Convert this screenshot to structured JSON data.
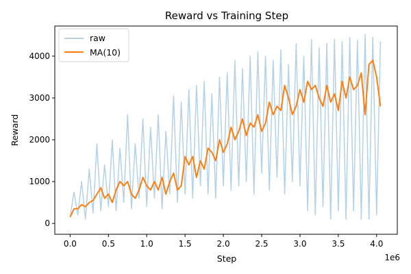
{
  "chart_data": {
    "type": "line",
    "title": "Reward vs Training Step",
    "xlabel": "Step",
    "ylabel": "Reward",
    "x_multiplier_label": "1e6",
    "xlim": [
      -0.2,
      4.27
    ],
    "ylim": [
      -260,
      4720
    ],
    "x_ticks": [
      0.0,
      0.5,
      1.0,
      1.5,
      2.0,
      2.5,
      3.0,
      3.5,
      4.0
    ],
    "x_tick_labels": [
      "0.0",
      "0.5",
      "1.0",
      "1.5",
      "2.0",
      "2.5",
      "3.0",
      "3.5",
      "4.0"
    ],
    "y_ticks": [
      0,
      1000,
      2000,
      3000,
      4000
    ],
    "y_tick_labels": [
      "0",
      "1000",
      "2000",
      "3000",
      "4000"
    ],
    "grid": false,
    "legend_position": "top-left",
    "series": [
      {
        "name": "raw",
        "color": "#b3d1e8",
        "x": [
          0.0,
          0.05,
          0.1,
          0.15,
          0.2,
          0.25,
          0.3,
          0.35,
          0.4,
          0.45,
          0.5,
          0.55,
          0.6,
          0.65,
          0.7,
          0.75,
          0.8,
          0.85,
          0.9,
          0.95,
          1.0,
          1.05,
          1.1,
          1.15,
          1.2,
          1.25,
          1.3,
          1.35,
          1.4,
          1.45,
          1.5,
          1.55,
          1.6,
          1.65,
          1.7,
          1.75,
          1.8,
          1.85,
          1.9,
          1.95,
          2.0,
          2.05,
          2.1,
          2.15,
          2.2,
          2.25,
          2.3,
          2.35,
          2.4,
          2.45,
          2.5,
          2.55,
          2.6,
          2.65,
          2.7,
          2.75,
          2.8,
          2.85,
          2.9,
          2.95,
          3.0,
          3.05,
          3.1,
          3.15,
          3.2,
          3.25,
          3.3,
          3.35,
          3.4,
          3.45,
          3.5,
          3.55,
          3.6,
          3.65,
          3.7,
          3.75,
          3.8,
          3.85,
          3.9,
          3.95,
          4.0,
          4.05
        ],
        "y": [
          150,
          750,
          200,
          1000,
          100,
          1300,
          250,
          1900,
          300,
          1400,
          400,
          2000,
          300,
          1800,
          500,
          2600,
          350,
          1900,
          600,
          2500,
          400,
          2300,
          600,
          2600,
          350,
          2200,
          700,
          3050,
          500,
          2900,
          700,
          3200,
          600,
          3300,
          900,
          3400,
          700,
          3100,
          600,
          3500,
          900,
          3600,
          800,
          3900,
          900,
          3700,
          1000,
          4000,
          700,
          4100,
          1200,
          4000,
          800,
          3900,
          1100,
          4150,
          700,
          3800,
          1000,
          4300,
          900,
          4000,
          300,
          4400,
          200,
          4200,
          400,
          4300,
          100,
          4400,
          300,
          4350,
          100,
          4450,
          300,
          4380,
          100,
          4520,
          100,
          4450,
          200,
          4350
        ]
      },
      {
        "name": "MA(10)",
        "color": "#ff7f0e",
        "x": [
          0.0,
          0.05,
          0.1,
          0.15,
          0.2,
          0.25,
          0.3,
          0.35,
          0.4,
          0.45,
          0.5,
          0.55,
          0.6,
          0.65,
          0.7,
          0.75,
          0.8,
          0.85,
          0.9,
          0.95,
          1.0,
          1.05,
          1.1,
          1.15,
          1.2,
          1.25,
          1.3,
          1.35,
          1.4,
          1.45,
          1.5,
          1.55,
          1.6,
          1.65,
          1.7,
          1.75,
          1.8,
          1.85,
          1.9,
          1.95,
          2.0,
          2.05,
          2.1,
          2.15,
          2.2,
          2.25,
          2.3,
          2.35,
          2.4,
          2.45,
          2.5,
          2.55,
          2.6,
          2.65,
          2.7,
          2.75,
          2.8,
          2.85,
          2.9,
          2.95,
          3.0,
          3.05,
          3.1,
          3.15,
          3.2,
          3.25,
          3.3,
          3.35,
          3.4,
          3.45,
          3.5,
          3.55,
          3.6,
          3.65,
          3.7,
          3.75,
          3.8,
          3.85,
          3.9,
          3.95,
          4.0,
          4.05
        ],
        "y": [
          150,
          350,
          350,
          450,
          400,
          500,
          550,
          700,
          850,
          600,
          700,
          500,
          800,
          1000,
          900,
          1000,
          700,
          600,
          800,
          1100,
          900,
          800,
          1000,
          800,
          1100,
          700,
          1000,
          1200,
          800,
          900,
          1600,
          1400,
          1600,
          1100,
          1500,
          1300,
          1800,
          1700,
          1500,
          2000,
          1700,
          1900,
          2300,
          2000,
          2200,
          2500,
          2100,
          2400,
          2300,
          2600,
          2200,
          2400,
          2900,
          2600,
          2800,
          2700,
          3300,
          3000,
          2600,
          2800,
          3200,
          2900,
          3400,
          3200,
          3300,
          3000,
          2800,
          3300,
          2900,
          3100,
          2700,
          3400,
          3000,
          3500,
          3200,
          3300,
          3600,
          2600,
          3800,
          3900,
          3500,
          2800
        ]
      }
    ]
  }
}
